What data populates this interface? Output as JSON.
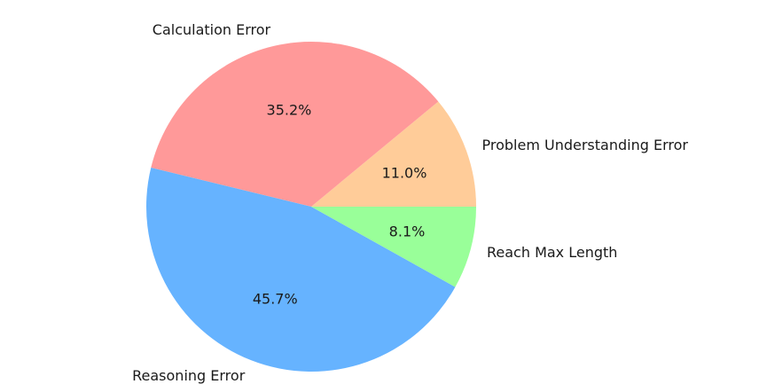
{
  "chart_data": {
    "type": "pie",
    "title": "",
    "start_angle_deg": 0,
    "direction": "counterclockwise",
    "legend": "none",
    "slices": [
      {
        "label": "Problem Understanding Error",
        "value": 11.0,
        "pct_label": "11.0%",
        "color": "#ffcc99"
      },
      {
        "label": "Calculation Error",
        "value": 35.2,
        "pct_label": "35.2%",
        "color": "#ff9999"
      },
      {
        "label": "Reasoning Error",
        "value": 45.7,
        "pct_label": "45.7%",
        "color": "#66b3ff"
      },
      {
        "label": "Reach Max Length",
        "value": 8.1,
        "pct_label": "8.1%",
        "color": "#99ff99"
      }
    ]
  }
}
